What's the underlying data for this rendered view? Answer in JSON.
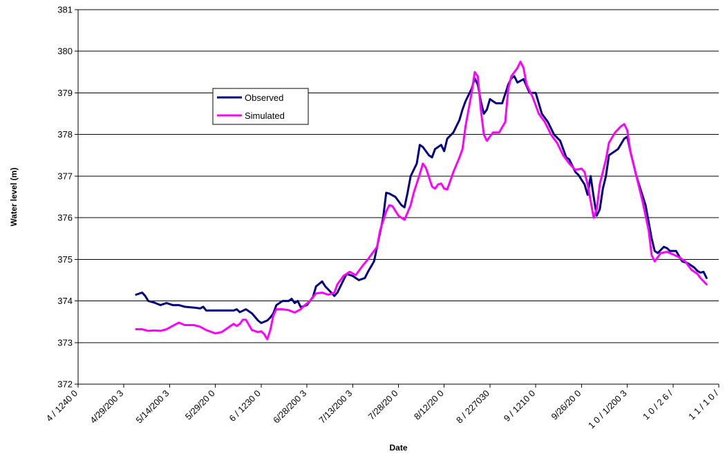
{
  "chart_data": {
    "type": "line",
    "title": "",
    "xlabel": "Date",
    "ylabel": "Water level (m)",
    "ylim": [
      372,
      381
    ],
    "yticks": [
      372,
      373,
      374,
      375,
      376,
      377,
      378,
      379,
      380,
      381
    ],
    "xlim": [
      "4/14/2003",
      "11/10/2003"
    ],
    "xtick_labels": [
      "4 / 1240 0",
      "4/29/200 3",
      "5/14/200 3",
      "5/29/20 0",
      "6 / 1230 0",
      "6/28/200 3",
      "7/13/200 3",
      "7/28/20 0",
      "8/12/20 0",
      "8 / 227030",
      "9 / 1210 0",
      "9/26/20 0",
      "1 0 / 1/200 3",
      "1 0 / 2 6 /",
      "1 1 / 1 0 /"
    ],
    "grid": "horizontal",
    "legend_position": "upper-left-inside",
    "series": [
      {
        "name": "Observed",
        "color": "#000080",
        "points": [
          [
            "5/3/2003",
            374.15
          ],
          [
            "5/5/2003",
            374.2
          ],
          [
            "5/6/2003",
            374.12
          ],
          [
            "5/7/2003",
            374.0
          ],
          [
            "5/9/2003",
            373.96
          ],
          [
            "5/11/2003",
            373.9
          ],
          [
            "5/13/2003",
            373.95
          ],
          [
            "5/15/2003",
            373.9
          ],
          [
            "5/17/2003",
            373.9
          ],
          [
            "5/19/2003",
            373.86
          ],
          [
            "5/22/2003",
            373.84
          ],
          [
            "5/24/2003",
            373.82
          ],
          [
            "5/25/2003",
            373.86
          ],
          [
            "5/26/2003",
            373.77
          ],
          [
            "5/29/2003",
            373.77
          ],
          [
            "6/1/2003",
            373.77
          ],
          [
            "6/4/2003",
            373.77
          ],
          [
            "6/5/2003",
            373.8
          ],
          [
            "6/6/2003",
            373.73
          ],
          [
            "6/8/2003",
            373.8
          ],
          [
            "6/10/2003",
            373.7
          ],
          [
            "6/12/2003",
            373.53
          ],
          [
            "6/13/2003",
            373.47
          ],
          [
            "6/15/2003",
            373.53
          ],
          [
            "6/16/2003",
            373.6
          ],
          [
            "6/17/2003",
            373.7
          ],
          [
            "6/18/2003",
            373.9
          ],
          [
            "6/20/2003",
            374.0
          ],
          [
            "6/22/2003",
            374.0
          ],
          [
            "6/23/2003",
            374.05
          ],
          [
            "6/24/2003",
            373.95
          ],
          [
            "6/25/2003",
            374.0
          ],
          [
            "6/26/2003",
            373.85
          ],
          [
            "6/28/2003",
            373.9
          ],
          [
            "6/30/2003",
            374.1
          ],
          [
            "7/1/2003",
            374.35
          ],
          [
            "7/3/2003",
            374.47
          ],
          [
            "7/4/2003",
            374.35
          ],
          [
            "7/6/2003",
            374.2
          ],
          [
            "7/7/2003",
            374.12
          ],
          [
            "7/8/2003",
            374.2
          ],
          [
            "7/10/2003",
            374.5
          ],
          [
            "7/11/2003",
            374.65
          ],
          [
            "7/13/2003",
            374.6
          ],
          [
            "7/15/2003",
            374.5
          ],
          [
            "7/17/2003",
            374.55
          ],
          [
            "7/18/2003",
            374.7
          ],
          [
            "7/20/2003",
            374.95
          ],
          [
            "7/21/2003",
            375.3
          ],
          [
            "7/23/2003",
            376.0
          ],
          [
            "7/24/2003",
            376.6
          ],
          [
            "7/25/2003",
            376.58
          ],
          [
            "7/27/2003",
            376.5
          ],
          [
            "7/29/2003",
            376.3
          ],
          [
            "7/30/2003",
            376.25
          ],
          [
            "7/31/2003",
            376.6
          ],
          [
            "8/1/2003",
            377.0
          ],
          [
            "8/3/2003",
            377.3
          ],
          [
            "8/4/2003",
            377.75
          ],
          [
            "8/5/2003",
            377.7
          ],
          [
            "8/7/2003",
            377.5
          ],
          [
            "8/8/2003",
            377.45
          ],
          [
            "8/9/2003",
            377.65
          ],
          [
            "8/11/2003",
            377.75
          ],
          [
            "8/12/2003",
            377.6
          ],
          [
            "8/13/2003",
            377.9
          ],
          [
            "8/15/2003",
            378.05
          ],
          [
            "8/16/2003",
            378.2
          ],
          [
            "8/17/2003",
            378.35
          ],
          [
            "8/18/2003",
            378.6
          ],
          [
            "8/19/2003",
            378.8
          ],
          [
            "8/21/2003",
            379.1
          ],
          [
            "8/22/2003",
            379.35
          ],
          [
            "8/23/2003",
            379.2
          ],
          [
            "8/24/2003",
            378.8
          ],
          [
            "8/25/2003",
            378.5
          ],
          [
            "8/26/2003",
            378.6
          ],
          [
            "8/27/2003",
            378.85
          ],
          [
            "8/29/2003",
            378.75
          ],
          [
            "8/31/2003",
            378.75
          ],
          [
            "9/2/2003",
            379.2
          ],
          [
            "9/3/2003",
            379.35
          ],
          [
            "9/4/2003",
            379.4
          ],
          [
            "9/5/2003",
            379.25
          ],
          [
            "9/7/2003",
            379.33
          ],
          [
            "9/9/2003",
            379.0
          ],
          [
            "9/11/2003",
            379.0
          ],
          [
            "9/13/2003",
            378.5
          ],
          [
            "9/15/2003",
            378.3
          ],
          [
            "9/17/2003",
            378.0
          ],
          [
            "9/19/2003",
            377.85
          ],
          [
            "9/21/2003",
            377.45
          ],
          [
            "9/22/2003",
            377.4
          ],
          [
            "9/24/2003",
            377.1
          ],
          [
            "9/25/2003",
            377.03
          ],
          [
            "9/27/2003",
            376.8
          ],
          [
            "9/28/2003",
            376.55
          ],
          [
            "9/29/2003",
            377.0
          ],
          [
            "9/30/2003",
            376.5
          ],
          [
            "10/1/2003",
            376.05
          ],
          [
            "10/2/2003",
            376.2
          ],
          [
            "10/3/2003",
            376.7
          ],
          [
            "10/4/2003",
            377.0
          ],
          [
            "10/5/2003",
            377.5
          ],
          [
            "10/7/2003",
            377.6
          ],
          [
            "10/8/2003",
            377.65
          ],
          [
            "10/10/2003",
            377.9
          ],
          [
            "10/11/2003",
            377.95
          ],
          [
            "10/12/2003",
            377.6
          ],
          [
            "10/14/2003",
            377.0
          ],
          [
            "10/17/2003",
            376.3
          ],
          [
            "10/18/2003",
            375.9
          ],
          [
            "10/19/2003",
            375.5
          ],
          [
            "10/20/2003",
            375.2
          ],
          [
            "10/21/2003",
            375.15
          ],
          [
            "10/23/2003",
            375.3
          ],
          [
            "10/24/2003",
            375.27
          ],
          [
            "10/25/2003",
            375.2
          ],
          [
            "10/27/2003",
            375.2
          ],
          [
            "10/29/2003",
            374.95
          ],
          [
            "10/31/2003",
            374.9
          ],
          [
            "11/2/2003",
            374.8
          ],
          [
            "11/3/2003",
            374.72
          ],
          [
            "11/4/2003",
            374.68
          ],
          [
            "11/5/2003",
            374.7
          ],
          [
            "11/6/2003",
            374.55
          ]
        ]
      },
      {
        "name": "Simulated",
        "color": "#ff00ff",
        "points": [
          [
            "5/3/2003",
            373.32
          ],
          [
            "5/5/2003",
            373.32
          ],
          [
            "5/7/2003",
            373.28
          ],
          [
            "5/9/2003",
            373.29
          ],
          [
            "5/11/2003",
            373.28
          ],
          [
            "5/13/2003",
            373.32
          ],
          [
            "5/15/2003",
            373.4
          ],
          [
            "5/17/2003",
            373.48
          ],
          [
            "5/19/2003",
            373.42
          ],
          [
            "5/22/2003",
            373.42
          ],
          [
            "5/24/2003",
            373.38
          ],
          [
            "5/26/2003",
            373.3
          ],
          [
            "5/29/2003",
            373.22
          ],
          [
            "5/31/2003",
            373.25
          ],
          [
            "6/2/2003",
            373.35
          ],
          [
            "6/4/2003",
            373.45
          ],
          [
            "6/5/2003",
            373.4
          ],
          [
            "6/6/2003",
            373.45
          ],
          [
            "6/7/2003",
            373.55
          ],
          [
            "6/8/2003",
            373.55
          ],
          [
            "6/10/2003",
            373.3
          ],
          [
            "6/12/2003",
            373.25
          ],
          [
            "6/13/2003",
            373.27
          ],
          [
            "6/14/2003",
            373.2
          ],
          [
            "6/15/2003",
            373.08
          ],
          [
            "6/16/2003",
            373.3
          ],
          [
            "6/17/2003",
            373.65
          ],
          [
            "6/18/2003",
            373.8
          ],
          [
            "6/20/2003",
            373.8
          ],
          [
            "6/22/2003",
            373.78
          ],
          [
            "6/24/2003",
            373.72
          ],
          [
            "6/26/2003",
            373.8
          ],
          [
            "6/27/2003",
            373.88
          ],
          [
            "6/29/2003",
            374.0
          ],
          [
            "7/1/2003",
            374.18
          ],
          [
            "7/3/2003",
            374.2
          ],
          [
            "7/5/2003",
            374.15
          ],
          [
            "7/7/2003",
            374.2
          ],
          [
            "7/8/2003",
            374.4
          ],
          [
            "7/10/2003",
            374.6
          ],
          [
            "7/12/2003",
            374.7
          ],
          [
            "7/14/2003",
            374.62
          ],
          [
            "7/16/2003",
            374.82
          ],
          [
            "7/18/2003",
            375.0
          ],
          [
            "7/21/2003",
            375.3
          ],
          [
            "7/22/2003",
            375.7
          ],
          [
            "7/24/2003",
            376.15
          ],
          [
            "7/25/2003",
            376.3
          ],
          [
            "7/26/2003",
            376.28
          ],
          [
            "7/28/2003",
            376.05
          ],
          [
            "7/30/2003",
            375.95
          ],
          [
            "8/1/2003",
            376.3
          ],
          [
            "8/2/2003",
            376.6
          ],
          [
            "8/4/2003",
            377.05
          ],
          [
            "8/5/2003",
            377.3
          ],
          [
            "8/6/2003",
            377.2
          ],
          [
            "8/8/2003",
            376.75
          ],
          [
            "8/9/2003",
            376.7
          ],
          [
            "8/10/2003",
            376.8
          ],
          [
            "8/11/2003",
            376.82
          ],
          [
            "8/12/2003",
            376.7
          ],
          [
            "8/13/2003",
            376.68
          ],
          [
            "8/15/2003",
            377.1
          ],
          [
            "8/17/2003",
            377.45
          ],
          [
            "8/18/2003",
            377.65
          ],
          [
            "8/19/2003",
            378.2
          ],
          [
            "8/21/2003",
            379.0
          ],
          [
            "8/22/2003",
            379.5
          ],
          [
            "8/23/2003",
            379.4
          ],
          [
            "8/24/2003",
            378.6
          ],
          [
            "8/25/2003",
            378.0
          ],
          [
            "8/26/2003",
            377.85
          ],
          [
            "8/28/2003",
            378.05
          ],
          [
            "8/30/2003",
            378.05
          ],
          [
            "9/1/2003",
            378.3
          ],
          [
            "9/2/2003",
            379.1
          ],
          [
            "9/3/2003",
            379.4
          ],
          [
            "9/5/2003",
            379.6
          ],
          [
            "9/6/2003",
            379.75
          ],
          [
            "9/7/2003",
            379.6
          ],
          [
            "9/8/2003",
            379.2
          ],
          [
            "9/10/2003",
            378.9
          ],
          [
            "9/12/2003",
            378.5
          ],
          [
            "9/14/2003",
            378.3
          ],
          [
            "9/16/2003",
            378.0
          ],
          [
            "9/18/2003",
            377.8
          ],
          [
            "9/20/2003",
            377.5
          ],
          [
            "9/22/2003",
            377.3
          ],
          [
            "9/24/2003",
            377.15
          ],
          [
            "9/26/2003",
            377.18
          ],
          [
            "9/27/2003",
            377.1
          ],
          [
            "9/28/2003",
            376.8
          ],
          [
            "9/29/2003",
            376.4
          ],
          [
            "9/30/2003",
            376.0
          ],
          [
            "10/1/2003",
            376.2
          ],
          [
            "10/2/2003",
            376.8
          ],
          [
            "10/4/2003",
            377.4
          ],
          [
            "10/5/2003",
            377.8
          ],
          [
            "10/7/2003",
            378.05
          ],
          [
            "10/9/2003",
            378.2
          ],
          [
            "10/10/2003",
            378.25
          ],
          [
            "10/11/2003",
            378.1
          ],
          [
            "10/12/2003",
            377.6
          ],
          [
            "10/14/2003",
            377.0
          ],
          [
            "10/16/2003",
            376.4
          ],
          [
            "10/18/2003",
            375.7
          ],
          [
            "10/19/2003",
            375.1
          ],
          [
            "10/20/2003",
            374.95
          ],
          [
            "10/22/2003",
            375.15
          ],
          [
            "10/24/2003",
            375.18
          ],
          [
            "10/26/2003",
            375.12
          ],
          [
            "10/28/2003",
            375.05
          ],
          [
            "10/30/2003",
            374.95
          ],
          [
            "11/1/2003",
            374.75
          ],
          [
            "11/3/2003",
            374.65
          ],
          [
            "11/4/2003",
            374.55
          ],
          [
            "11/6/2003",
            374.4
          ]
        ]
      }
    ]
  }
}
